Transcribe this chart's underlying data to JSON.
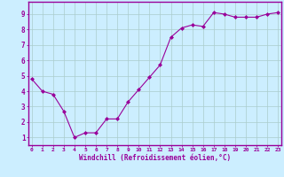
{
  "x": [
    0,
    1,
    2,
    3,
    4,
    5,
    6,
    7,
    8,
    9,
    10,
    11,
    12,
    13,
    14,
    15,
    16,
    17,
    18,
    19,
    20,
    21,
    22,
    23
  ],
  "y": [
    4.8,
    4.0,
    3.8,
    2.7,
    1.0,
    1.3,
    1.3,
    2.2,
    2.2,
    3.3,
    4.1,
    4.9,
    5.7,
    7.5,
    8.1,
    8.3,
    8.2,
    9.1,
    9.0,
    8.8,
    8.8,
    8.8,
    9.0,
    9.1
  ],
  "line_color": "#990099",
  "marker_color": "#990099",
  "bg_color": "#cceeff",
  "grid_color": "#aacccc",
  "xlabel": "Windchill (Refroidissement éolien,°C)",
  "xlabel_color": "#990099",
  "xtick_labels": [
    "0",
    "1",
    "2",
    "3",
    "4",
    "5",
    "6",
    "7",
    "8",
    "9",
    "10",
    "11",
    "12",
    "13",
    "14",
    "15",
    "16",
    "17",
    "18",
    "19",
    "20",
    "21",
    "22",
    "23"
  ],
  "ytick_labels": [
    "1",
    "2",
    "3",
    "4",
    "5",
    "6",
    "7",
    "8",
    "9"
  ],
  "ylim": [
    0.5,
    9.8
  ],
  "xlim": [
    -0.3,
    23.3
  ],
  "tick_color": "#990099",
  "spine_color": "#990099",
  "marker_size": 2.0,
  "line_width": 0.8
}
